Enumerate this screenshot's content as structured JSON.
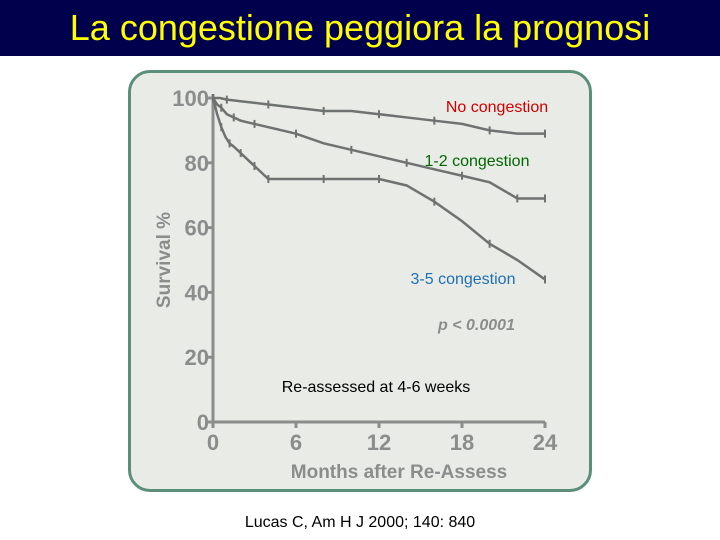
{
  "slide": {
    "title": "La congestione peggiora la prognosi",
    "citation": "Lucas C, Am H J 2000; 140: 840"
  },
  "chart_data": {
    "type": "line",
    "xlabel": "Months after Re-Assess",
    "ylabel": "Survival %",
    "xlim": [
      0,
      24
    ],
    "ylim": [
      0,
      100
    ],
    "x_ticks": [
      0,
      6,
      12,
      18,
      24
    ],
    "y_ticks": [
      0,
      20,
      40,
      60,
      80,
      100
    ],
    "grid": false,
    "series": [
      {
        "name": "No congestion",
        "color": "#cc0000",
        "x": [
          0,
          0.5,
          1,
          2,
          4,
          6,
          8,
          10,
          12,
          14,
          16,
          18,
          20,
          22,
          24
        ],
        "y": [
          100,
          100,
          99.5,
          99,
          98,
          97,
          96,
          96,
          95,
          94,
          93,
          92,
          90,
          89,
          89
        ]
      },
      {
        "name": "1-2 congestion",
        "color": "#006600",
        "x": [
          0,
          0.3,
          0.6,
          1,
          1.5,
          2,
          3,
          4,
          6,
          8,
          10,
          12,
          14,
          16,
          18,
          20,
          22,
          24
        ],
        "y": [
          100,
          98,
          97,
          95,
          94,
          93,
          92,
          91,
          89,
          86,
          84,
          82,
          80,
          78,
          76,
          74,
          69,
          69
        ]
      },
      {
        "name": "3-5 congestion",
        "color": "#1f6fb5",
        "x": [
          0,
          0.3,
          0.6,
          0.9,
          1.2,
          1.5,
          2,
          2.5,
          3,
          3.5,
          4,
          6,
          8,
          10,
          12,
          14,
          16,
          18,
          20,
          22,
          24
        ],
        "y": [
          100,
          95,
          91,
          88,
          86,
          85,
          83,
          81,
          79,
          77,
          75,
          75,
          75,
          75,
          75,
          73,
          68,
          62,
          55,
          50,
          44
        ]
      }
    ],
    "annotations": {
      "p_value": "p < 0.0001",
      "reassessed": "Re-assessed at 4-6 weeks"
    }
  }
}
